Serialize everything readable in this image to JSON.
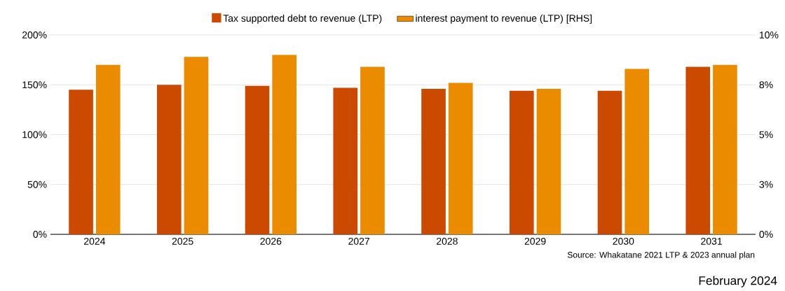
{
  "chart_data": {
    "type": "bar",
    "categories": [
      "2024",
      "2025",
      "2026",
      "2027",
      "2028",
      "2029",
      "2030",
      "2031"
    ],
    "series": [
      {
        "name": "Tax supported debt to revenue (LTP)",
        "color": "#cc4a00",
        "values": [
          145,
          150,
          149,
          147,
          146,
          144,
          144,
          168
        ]
      },
      {
        "name": "interest payment to revenue (LTP) [RHS]",
        "color": "#eb8c00",
        "values": [
          8.5,
          8.9,
          9.0,
          8.4,
          7.6,
          7.3,
          8.3,
          8.5
        ],
        "axis": "y2"
      }
    ],
    "ylim": [
      0,
      200
    ],
    "yticks": [
      {
        "value": 0,
        "label": "0%"
      },
      {
        "value": 50,
        "label": "50%"
      },
      {
        "value": 100,
        "label": "100%"
      },
      {
        "value": 150,
        "label": "150%"
      },
      {
        "value": 200,
        "label": "200%"
      }
    ],
    "y2lim": [
      0,
      10
    ],
    "y2ticks": [
      {
        "value": 0,
        "label": "0%"
      },
      {
        "value": 2.5,
        "label": "3%"
      },
      {
        "value": 5,
        "label": "5%"
      },
      {
        "value": 7.5,
        "label": "8%"
      },
      {
        "value": 10,
        "label": "10%"
      }
    ],
    "grid": "y",
    "legend": "top",
    "annotations": [
      "Source: Whakatane 2021 LTP & 2023 annual plan",
      "February 2024"
    ]
  }
}
